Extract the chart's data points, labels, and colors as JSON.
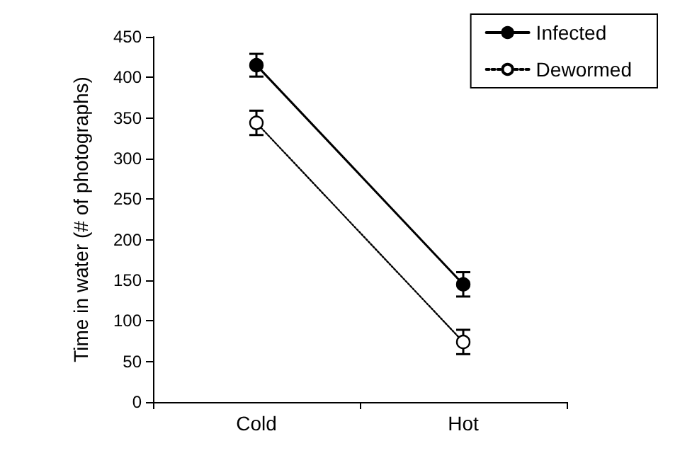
{
  "chart_data": {
    "type": "line",
    "ylabel": "Time in water (# of photographs)",
    "categories": [
      "Cold",
      "Hot"
    ],
    "series": [
      {
        "name": "Infected",
        "color": "#000000",
        "line_style": "solid",
        "values": [
          415,
          145
        ],
        "errors": [
          14,
          15
        ]
      },
      {
        "name": "Dewormed",
        "color": "#000000",
        "line_style": "dotted",
        "values": [
          344,
          74
        ],
        "errors": [
          15,
          15
        ]
      }
    ],
    "ylim": [
      0,
      450
    ],
    "yticks": [
      0,
      50,
      100,
      150,
      200,
      250,
      300,
      350,
      400,
      450
    ],
    "grid": false,
    "legend": "top right",
    "marker": "circle"
  }
}
